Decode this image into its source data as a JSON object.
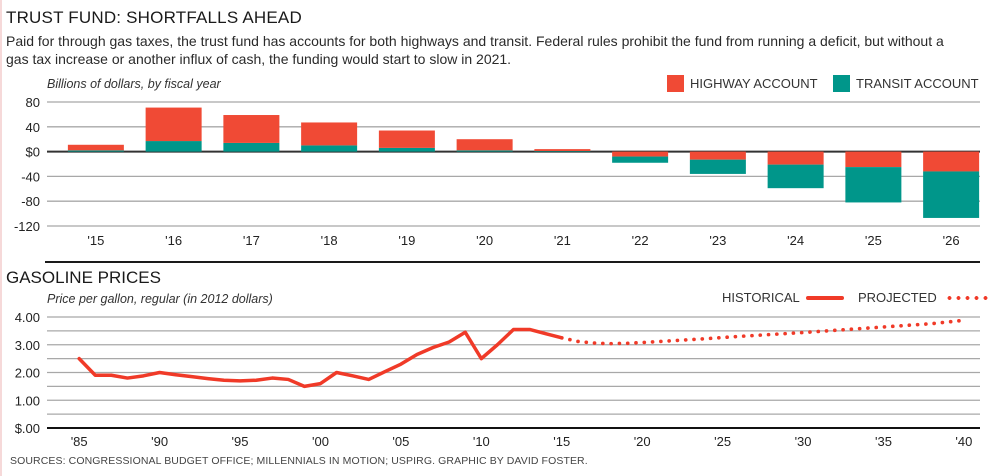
{
  "header": {
    "title": "TRUST FUND: SHORTFALLS AHEAD",
    "description": "Paid for through gas taxes, the trust fund has accounts for both highways and transit. Federal rules prohibit the fund from running a deficit, but without a gas tax increase or another influx of cash, the funding would start to slow in 2021."
  },
  "colors": {
    "highway": "#f04a35",
    "transit": "#00968a",
    "line": "#f03a28",
    "grid": "#a8a8a8",
    "axis": "#333333"
  },
  "footer": {
    "source": "SOURCES: CONGRESSIONAL BUDGET OFFICE; MILLENNIALS IN MOTION; USPIRG. GRAPHIC BY DAVID FOSTER."
  },
  "chart_data": [
    {
      "type": "bar",
      "stacked": true,
      "title": "TRUST FUND: SHORTFALLS AHEAD",
      "ylabel": "Billions of dollars, by fiscal year",
      "xlabel": "",
      "categories": [
        "'15",
        "'16",
        "'17",
        "'18",
        "'19",
        "'20",
        "'21",
        "'22",
        "'23",
        "'24",
        "'25",
        "'26"
      ],
      "series": [
        {
          "name": "TRANSIT ACCOUNT",
          "values": [
            2,
            17,
            14,
            10,
            6,
            2,
            1,
            -10,
            -23,
            -38,
            -57,
            -75
          ]
        },
        {
          "name": "HIGHWAY ACCOUNT",
          "values": [
            9,
            54,
            45,
            37,
            28,
            18,
            3,
            -8,
            -13,
            -21,
            -25,
            -32
          ]
        }
      ],
      "note": "Positive values stack upward from $0 (transit on bottom); negative values stack downward (highway adjacent to $0, transit below).",
      "ylim": [
        -120,
        80
      ],
      "yticks": [
        80,
        40,
        0,
        -40,
        -80,
        -120
      ],
      "ytick_labels": [
        "80",
        "40",
        "$0",
        "-40",
        "-80",
        "-120"
      ],
      "legend": [
        "HIGHWAY ACCOUNT",
        "TRANSIT ACCOUNT"
      ],
      "legend_position": "top-right",
      "grid": true
    },
    {
      "type": "line",
      "title": "GASOLINE PRICES",
      "ylabel": "Price per gallon, regular (in 2012 dollars)",
      "xlabel": "",
      "series": [
        {
          "name": "HISTORICAL",
          "style": "solid",
          "x": [
            1985,
            1986,
            1987,
            1988,
            1989,
            1990,
            1991,
            1992,
            1993,
            1994,
            1995,
            1996,
            1997,
            1998,
            1999,
            2000,
            2001,
            2002,
            2003,
            2004,
            2005,
            2006,
            2007,
            2008,
            2009,
            2010,
            2011,
            2012,
            2013,
            2014,
            2015
          ],
          "y": [
            2.5,
            1.9,
            1.9,
            1.8,
            1.88,
            2.0,
            1.92,
            1.85,
            1.78,
            1.72,
            1.7,
            1.72,
            1.8,
            1.75,
            1.5,
            1.6,
            2.0,
            1.88,
            1.75,
            2.03,
            2.3,
            2.65,
            2.9,
            3.1,
            3.45,
            2.5,
            3.0,
            3.55,
            3.55,
            3.4,
            3.25
          ]
        },
        {
          "name": "PROJECTED",
          "style": "dotted",
          "x": [
            2015,
            2016,
            2017,
            2018,
            2019,
            2020,
            2022,
            2024,
            2026,
            2028,
            2030,
            2032,
            2034,
            2036,
            2038,
            2040
          ],
          "y": [
            3.25,
            3.12,
            3.06,
            3.04,
            3.05,
            3.08,
            3.15,
            3.22,
            3.3,
            3.37,
            3.44,
            3.52,
            3.6,
            3.68,
            3.76,
            3.88
          ]
        }
      ],
      "xlim": [
        1983,
        2041
      ],
      "xticks": [
        1985,
        1990,
        1995,
        2000,
        2005,
        2010,
        2015,
        2020,
        2025,
        2030,
        2035,
        2040
      ],
      "xtick_labels": [
        "'85",
        "'90",
        "'95",
        "'00",
        "'05",
        "'10",
        "'15",
        "'20",
        "'25",
        "'30",
        "'35",
        "'40"
      ],
      "ylim": [
        0,
        4.0
      ],
      "yticks": [
        4.0,
        3.0,
        2.0,
        1.0,
        0.0
      ],
      "ytick_labels": [
        "4.00",
        "3.00",
        "2.00",
        "1.00",
        "$.00"
      ],
      "minor_grid_step": 0.5,
      "legend": [
        "HISTORICAL",
        "PROJECTED"
      ],
      "legend_position": "top-right",
      "grid": true
    }
  ]
}
